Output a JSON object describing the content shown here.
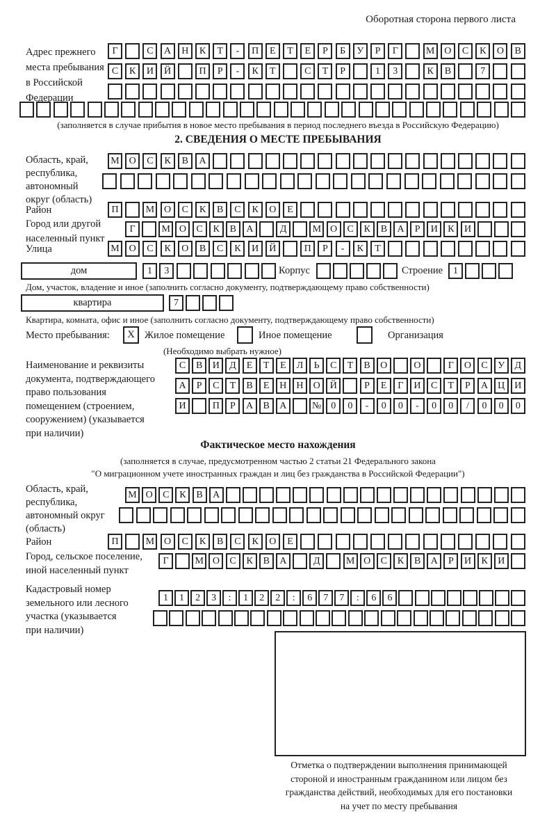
{
  "page": {
    "header_note": "Оборотная сторона первого листа"
  },
  "prev_address": {
    "label_lines": [
      "Адрес прежнего",
      "места пребывания",
      "в Российской",
      "Федерации"
    ],
    "rows": [
      {
        "text": "Г САНКТ-ПЕТЕРБУРГ МОСКОВ",
        "cells": 24
      },
      {
        "text": "СКИЙ ПР-КТ СТР 13 КВ 7",
        "cells": 24
      },
      {
        "text": "",
        "cells": 24
      },
      {
        "text": "",
        "cells": 30
      }
    ],
    "note": "(заполняется в случае прибытия в новое место пребывания в период последнего въезда в Российскую Федерацию)"
  },
  "section2": {
    "title": "2. СВЕДЕНИЯ О МЕСТЕ ПРЕБЫВАНИЯ",
    "oblast": {
      "label_lines": [
        "Область, край,",
        "республика,",
        "автономный",
        "округ (область)"
      ],
      "rows": [
        {
          "text": "МОСКВА",
          "cells": 24
        },
        {
          "text": "",
          "cells": 24
        }
      ]
    },
    "raion": {
      "label": "Район",
      "row": {
        "text": "П МОСКВСКОЕ",
        "cells": 24
      }
    },
    "gorod": {
      "label_lines": [
        "Город или другой",
        "населенный пункт"
      ],
      "row": {
        "text": "Г МОСКВА Д МОСКВАРИКИ",
        "cells": 24
      }
    },
    "ulitsa": {
      "label": "Улица",
      "row": {
        "text": "МОСКОВСКИЙ ПР-КТ",
        "cells": 24
      }
    },
    "dom": {
      "box_label": "дом",
      "row": {
        "text": "13",
        "cells": 8
      },
      "korpus_label": "Корпус",
      "korpus_row": {
        "text": "",
        "cells": 5
      },
      "stroenie_label": "Строение",
      "stroenie_row": {
        "text": "1",
        "cells": 4
      },
      "note": "Дом, участок, владение и иное (заполнить согласно документу, подтверждающему право собственности)"
    },
    "kvartira": {
      "box_label": "квартира",
      "row": {
        "text": "7",
        "cells": 4
      },
      "note": "Квартира, комната, офис и иное (заполнить согласно документу, подтверждающему право собственности)"
    },
    "mesto": {
      "label": "Место пребывания:",
      "options": [
        {
          "label": "Жилое помещение",
          "checked": "X"
        },
        {
          "label": "Иное помещение",
          "checked": ""
        },
        {
          "label": "Организация",
          "checked": ""
        }
      ],
      "note": "(Необходимо выбрать нужное)"
    },
    "document": {
      "label_lines": [
        "Наименование и реквизиты",
        "документа, подтверждающего",
        "право пользования",
        "помещением (строением,",
        "сооружением) (указывается",
        "при наличии)"
      ],
      "rows": [
        {
          "text": "СВИДЕТЕЛЬСТВО О ГОСУД",
          "cells": 21
        },
        {
          "text": "АРСТВЕННОЙ РЕГИСТРАЦИ",
          "cells": 21
        },
        {
          "text": "И ПРАВА №00-00-00/000",
          "cells": 21
        }
      ]
    }
  },
  "fact": {
    "title": "Фактическое место нахождения",
    "note_lines": [
      "(заполняется в случае, предусмотренном частью 2 статьи 21 Федерального закона",
      "\"О миграционном учете иностранных граждан и лиц без гражданства в Российской Федерации\")"
    ],
    "oblast": {
      "label_lines": [
        "Область, край,",
        "республика,",
        "автономный округ",
        "(область)"
      ],
      "rows": [
        {
          "text": "МОСКВА",
          "cells": 24
        },
        {
          "text": "",
          "cells": 24
        }
      ]
    },
    "raion": {
      "label": "Район",
      "row": {
        "text": "П МОСКВСКОЕ",
        "cells": 24
      }
    },
    "gorod": {
      "label_lines": [
        "Город, сельское поселение,",
        "иной населенный пункт"
      ],
      "row": {
        "text": "Г МОСКВА Д МОСКВАРИКИ",
        "cells": 22
      }
    },
    "kadastr": {
      "label_lines": [
        "Кадастровый номер",
        "земельного или лесного",
        "участка (указывается",
        "при наличии)"
      ],
      "rows": [
        {
          "text": "1123:122:677:66",
          "cells": 23
        },
        {
          "text": "",
          "cells": 23
        }
      ]
    },
    "stamp_caption_lines": [
      "Отметка о подтверждении выполнения принимающей",
      "стороной и иностранным гражданином или лицом без",
      "гражданства действий, необходимых для его постановки",
      "на учет по месту пребывания"
    ]
  }
}
